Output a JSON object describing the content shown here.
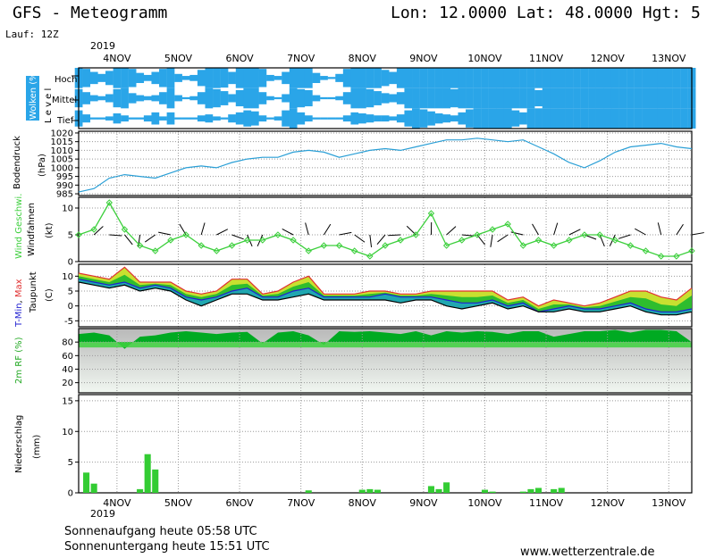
{
  "header": {
    "title": "GFS - Meteogramm",
    "location": "Lon: 12.0000 Lat: 48.0000 Hgt: 5",
    "run": "Lauf: 12Z"
  },
  "days": [
    "4NOV",
    "5NOV",
    "6NOV",
    "7NOV",
    "8NOV",
    "9NOV",
    "10NOV",
    "11NOV",
    "12NOV",
    "13NOV"
  ],
  "year": "2019",
  "footer": {
    "sunrise": "Sonnenaufgang heute 05:58 UTC",
    "sunset": "Sonnenuntergang heute 15:51 UTC",
    "site": "www.wetterzentrale.de"
  },
  "colors": {
    "cloud": "#2aa5e8",
    "pressure": "#2a9fd6",
    "wind": "#3ccf3c",
    "tmax": "#e03030",
    "tmin": "#2020d0",
    "dew": "#000000",
    "precip": "#33cc33"
  },
  "chart_data": [
    {
      "type": "heatmap",
      "ylabel": "Wolken (%)",
      "ylabel2": "L e v e l",
      "levels": [
        "Hoch",
        "Mittel",
        "Tief"
      ],
      "x": [
        0,
        3,
        6,
        9,
        12,
        15,
        18,
        21,
        24,
        27,
        30,
        33,
        36,
        39,
        42,
        45,
        48,
        51,
        54,
        57,
        60,
        63,
        66,
        69,
        72,
        75,
        78,
        81,
        84,
        87,
        90,
        93,
        96,
        99,
        102,
        105,
        108,
        111,
        114,
        117,
        120,
        123,
        126,
        129,
        132,
        135,
        138,
        141,
        144,
        147,
        150,
        153,
        156,
        159,
        162,
        165,
        168,
        171,
        174,
        177,
        180,
        183,
        186,
        189,
        192,
        195,
        198,
        201,
        204,
        207,
        210,
        213,
        216,
        219,
        222,
        225,
        228,
        231,
        234,
        237,
        240
      ],
      "hoch": [
        100,
        90,
        60,
        40,
        70,
        100,
        100,
        90,
        50,
        30,
        60,
        90,
        100,
        40,
        20,
        30,
        80,
        100,
        100,
        95,
        60,
        100,
        100,
        100,
        90,
        30,
        20,
        60,
        100,
        100,
        100,
        50,
        20,
        10,
        40,
        90,
        100,
        100,
        100,
        100,
        80,
        60,
        100,
        100,
        100,
        100,
        100,
        100,
        100,
        100,
        100,
        100,
        100,
        100,
        100,
        100,
        100,
        100,
        100,
        100,
        100,
        100,
        100,
        100,
        100,
        100,
        100,
        100,
        100,
        100,
        100,
        100,
        100,
        100,
        100,
        100,
        100,
        100,
        100,
        100,
        100
      ],
      "mittel": [
        90,
        60,
        30,
        20,
        40,
        90,
        100,
        50,
        30,
        20,
        30,
        60,
        100,
        30,
        10,
        20,
        60,
        100,
        90,
        70,
        40,
        80,
        100,
        100,
        60,
        20,
        10,
        40,
        100,
        90,
        80,
        30,
        10,
        10,
        20,
        60,
        100,
        100,
        90,
        70,
        50,
        40,
        60,
        100,
        100,
        100,
        100,
        100,
        100,
        90,
        100,
        100,
        100,
        100,
        100,
        100,
        100,
        100,
        100,
        100,
        80,
        100,
        100,
        100,
        100,
        100,
        100,
        100,
        100,
        100,
        100,
        100,
        100,
        100,
        100,
        100,
        100,
        100,
        100,
        100,
        100
      ],
      "tief": [
        80,
        40,
        10,
        10,
        20,
        50,
        30,
        10,
        10,
        30,
        60,
        20,
        60,
        10,
        10,
        10,
        30,
        40,
        20,
        10,
        40,
        60,
        80,
        70,
        30,
        10,
        20,
        80,
        100,
        60,
        30,
        10,
        10,
        10,
        10,
        30,
        60,
        50,
        40,
        30,
        30,
        20,
        40,
        80,
        100,
        90,
        70,
        50,
        40,
        30,
        60,
        90,
        100,
        100,
        100,
        100,
        100,
        80,
        60,
        100,
        100,
        100,
        100,
        100,
        100,
        100,
        100,
        100,
        100,
        100,
        100,
        100,
        100,
        100,
        100,
        100,
        100,
        100,
        100,
        100,
        100
      ]
    },
    {
      "type": "line",
      "ylabel": "Bodendruck",
      "yunit": "(hPa)",
      "ylim": [
        984,
        1021
      ],
      "yticks": [
        985,
        990,
        995,
        1000,
        1005,
        1010,
        1015,
        1020
      ],
      "x": [
        0,
        6,
        12,
        18,
        24,
        30,
        36,
        42,
        48,
        54,
        60,
        66,
        72,
        78,
        84,
        90,
        96,
        102,
        108,
        114,
        120,
        126,
        132,
        138,
        144,
        150,
        156,
        162,
        168,
        174,
        180,
        186,
        192,
        198,
        204,
        210,
        216,
        222,
        228,
        234,
        240
      ],
      "values": [
        986,
        988,
        994,
        996,
        995,
        994,
        997,
        1000,
        1001,
        1000,
        1003,
        1005,
        1006,
        1006,
        1009,
        1010,
        1009,
        1006,
        1008,
        1010,
        1011,
        1010,
        1012,
        1014,
        1016,
        1016,
        1017,
        1016,
        1015,
        1016,
        1012,
        1008,
        1003,
        1000,
        1004,
        1009,
        1012,
        1013,
        1014,
        1012,
        1011
      ]
    },
    {
      "type": "line",
      "ylabel": "Wind Geschwi.",
      "ylabel2": "Windfahnen",
      "yunit": "(kt)",
      "ylim": [
        0,
        12
      ],
      "yticks": [
        0,
        5,
        10
      ],
      "x": [
        0,
        6,
        12,
        18,
        24,
        30,
        36,
        42,
        48,
        54,
        60,
        66,
        72,
        78,
        84,
        90,
        96,
        102,
        108,
        114,
        120,
        126,
        132,
        138,
        144,
        150,
        156,
        162,
        168,
        174,
        180,
        186,
        192,
        198,
        204,
        210,
        216,
        222,
        228,
        234,
        240
      ],
      "values": [
        5,
        6,
        11,
        6,
        3,
        2,
        4,
        5,
        3,
        2,
        3,
        4,
        4,
        5,
        4,
        2,
        3,
        3,
        2,
        1,
        3,
        4,
        5,
        9,
        3,
        4,
        5,
        6,
        7,
        3,
        4,
        3,
        4,
        5,
        5,
        4,
        3,
        2,
        1,
        1,
        2
      ]
    },
    {
      "type": "area",
      "ylabel": "T-Min, Max",
      "ylabel2": "Taupunkt",
      "yunit": "(C)",
      "ylim": [
        -7,
        14
      ],
      "yticks": [
        -5,
        0,
        5,
        10
      ],
      "x": [
        0,
        6,
        12,
        18,
        24,
        30,
        36,
        42,
        48,
        54,
        60,
        66,
        72,
        78,
        84,
        90,
        96,
        102,
        108,
        114,
        120,
        126,
        132,
        138,
        144,
        150,
        156,
        162,
        168,
        174,
        180,
        186,
        192,
        198,
        204,
        210,
        216,
        222,
        228,
        234,
        240
      ],
      "series": [
        {
          "name": "T-Max",
          "values": [
            11,
            10,
            9,
            13,
            8,
            8,
            8,
            5,
            4,
            5,
            9,
            9,
            4,
            5,
            8,
            10,
            4,
            4,
            4,
            5,
            5,
            4,
            4,
            5,
            5,
            5,
            5,
            5,
            2,
            3,
            0,
            2,
            1,
            0,
            1,
            3,
            5,
            5,
            3,
            2,
            6
          ]
        },
        {
          "name": "T-Min",
          "values": [
            9,
            8,
            7,
            8,
            6,
            7,
            6,
            3,
            2,
            3,
            5,
            6,
            3,
            3,
            5,
            6,
            3,
            3,
            3,
            3,
            4,
            3,
            3,
            3,
            2,
            1,
            1,
            2,
            0,
            1,
            -2,
            -1,
            0,
            -1,
            -1,
            0,
            1,
            -1,
            -2,
            -2,
            -1
          ]
        },
        {
          "name": "Taupunkt",
          "values": [
            8,
            7,
            6,
            7,
            5,
            6,
            5,
            2,
            0,
            2,
            4,
            4,
            2,
            2,
            3,
            4,
            2,
            2,
            2,
            2,
            2,
            1,
            2,
            2,
            0,
            -1,
            0,
            1,
            -1,
            0,
            -2,
            -2,
            -1,
            -2,
            -2,
            -1,
            0,
            -2,
            -3,
            -3,
            -2
          ]
        }
      ]
    },
    {
      "type": "area",
      "ylabel": "2m RF (%)",
      "ylim": [
        5,
        100
      ],
      "yticks": [
        20,
        40,
        60,
        80
      ],
      "x": [
        0,
        6,
        12,
        18,
        24,
        30,
        36,
        42,
        48,
        54,
        60,
        66,
        72,
        78,
        84,
        90,
        96,
        102,
        108,
        114,
        120,
        126,
        132,
        138,
        144,
        150,
        156,
        162,
        168,
        174,
        180,
        186,
        192,
        198,
        204,
        210,
        216,
        222,
        228,
        234,
        240
      ],
      "values": [
        92,
        94,
        90,
        70,
        88,
        90,
        94,
        96,
        94,
        92,
        94,
        95,
        78,
        94,
        96,
        90,
        76,
        96,
        95,
        96,
        94,
        92,
        96,
        90,
        96,
        94,
        96,
        95,
        92,
        96,
        96,
        88,
        92,
        96,
        96,
        98,
        94,
        98,
        98,
        96,
        80
      ]
    },
    {
      "type": "bar",
      "ylabel": "Niederschlag",
      "yunit": "(mm)",
      "ylim": [
        0,
        16
      ],
      "yticks": [
        0,
        5,
        10,
        15
      ],
      "x": [
        3,
        6,
        24,
        27,
        30,
        90,
        111,
        114,
        117,
        138,
        141,
        144,
        159,
        162,
        174,
        177,
        180,
        186,
        189
      ],
      "values": [
        3.3,
        1.5,
        0.6,
        6.3,
        3.8,
        0.4,
        0.5,
        0.6,
        0.5,
        1.1,
        0.6,
        1.7,
        0.5,
        0.2,
        0.2,
        0.6,
        0.8,
        0.6,
        0.8
      ]
    }
  ]
}
